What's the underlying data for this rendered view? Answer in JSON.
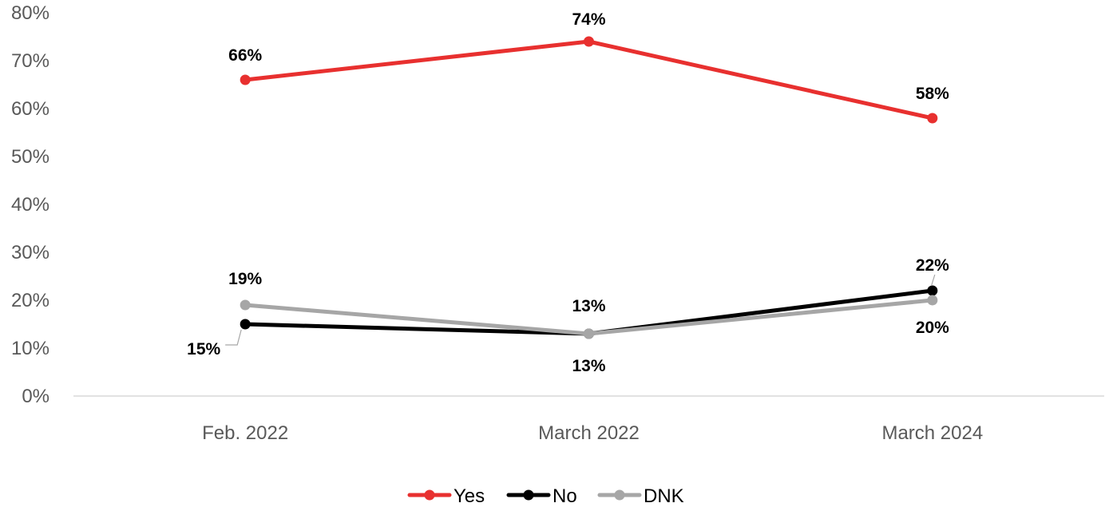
{
  "chart_data": {
    "type": "line",
    "categories": [
      "Feb. 2022",
      "March 2022",
      "March 2024"
    ],
    "series": [
      {
        "name": "Yes",
        "color": "#e8302f",
        "values": [
          66,
          74,
          58
        ],
        "labels": [
          "66%",
          "74%",
          "58%"
        ]
      },
      {
        "name": "No",
        "color": "#000000",
        "values": [
          15,
          13,
          22
        ],
        "labels": [
          "15%",
          "13%",
          "22%"
        ]
      },
      {
        "name": "DNK",
        "color": "#a6a6a6",
        "values": [
          19,
          13,
          20
        ],
        "labels": [
          "19%",
          "13%",
          "20%"
        ]
      }
    ],
    "ylim": [
      0,
      80
    ],
    "yticks": [
      "0%",
      "10%",
      "20%",
      "30%",
      "40%",
      "50%",
      "60%",
      "70%",
      "80%"
    ],
    "grid": false,
    "legend": "bottom-center"
  }
}
